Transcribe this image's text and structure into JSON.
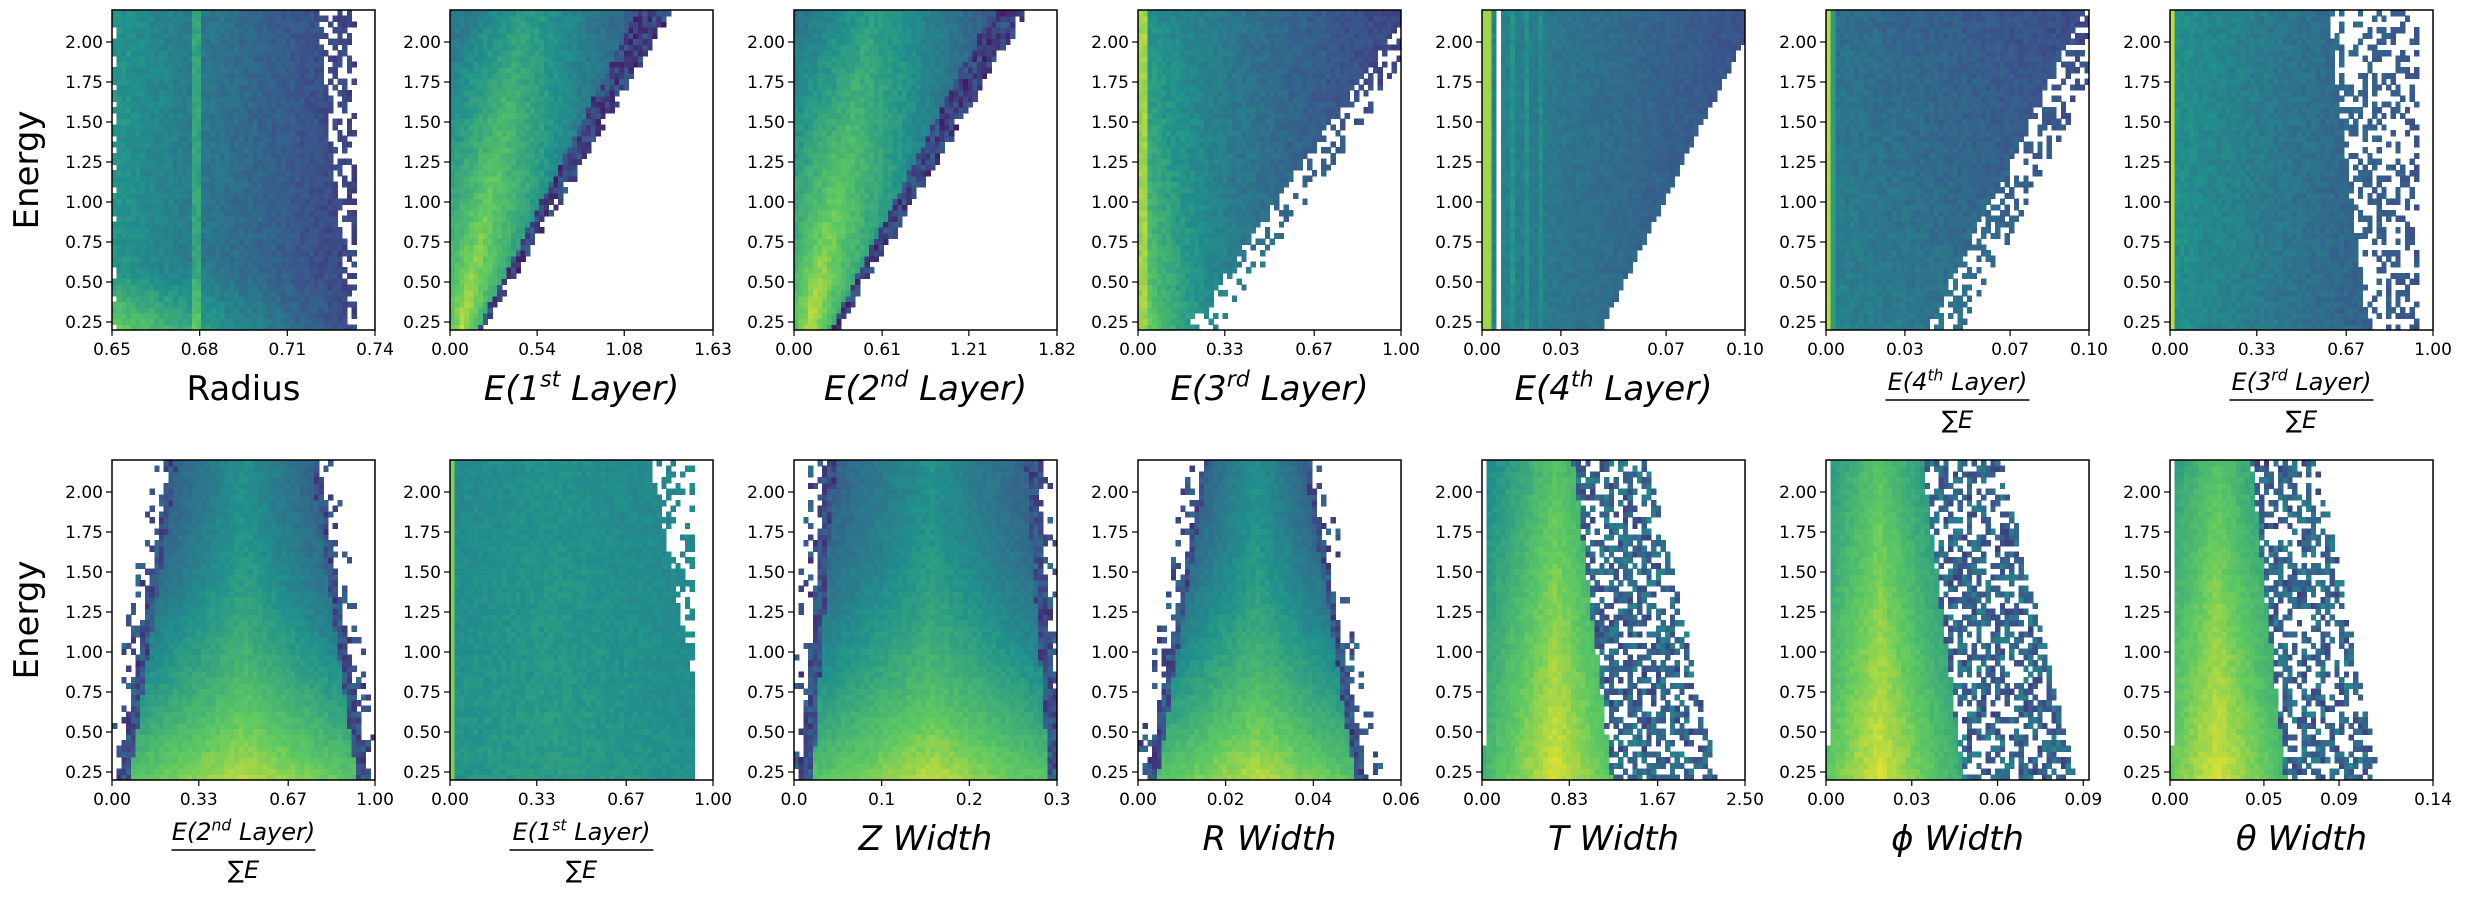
{
  "chart_data": {
    "type": "heatmap",
    "layout": "2 rows x 7 columns of 2D histograms",
    "shared_y": {
      "label": "Energy",
      "ylim": [
        0.2,
        2.2
      ],
      "ticks": [
        0.25,
        0.5,
        0.75,
        1.0,
        1.25,
        1.5,
        1.75,
        2.0
      ],
      "tick_labels": [
        "0.25",
        "0.50",
        "0.75",
        "1.00",
        "1.25",
        "1.50",
        "1.75",
        "2.00"
      ]
    },
    "colormap": [
      "#440154",
      "#3b528b",
      "#21918c",
      "#5ec962",
      "#fde725"
    ],
    "panels": [
      {
        "id": "radius",
        "row": 0,
        "col": 0,
        "xlabel": "Radius",
        "xlabel_style": "plain",
        "xlim": [
          0.65,
          0.74
        ],
        "xticks": [
          0.65,
          0.68,
          0.71,
          0.74
        ],
        "xtick_labels": [
          "0.65",
          "0.68",
          "0.71",
          "0.74"
        ],
        "pattern": "radius"
      },
      {
        "id": "e-layer1",
        "row": 0,
        "col": 1,
        "xlabel_parts": [
          "E(1",
          "st",
          " Layer)"
        ],
        "xlabel_style": "sup",
        "xlim": [
          0,
          1.63
        ],
        "xticks": [
          0,
          0.54,
          1.08,
          1.63
        ],
        "xtick_labels": [
          "0.00",
          "0.54",
          "1.08",
          "1.63"
        ],
        "pattern": "wedge",
        "params": {
          "k": 0.72,
          "w": 0.12
        }
      },
      {
        "id": "e-layer2",
        "row": 0,
        "col": 2,
        "xlabel_parts": [
          "E(2",
          "nd",
          " Layer)"
        ],
        "xlabel_style": "sup",
        "xlim": [
          0,
          1.82
        ],
        "xticks": [
          0,
          0.61,
          1.21,
          1.82
        ],
        "xtick_labels": [
          "0.00",
          "0.61",
          "1.21",
          "1.82"
        ],
        "pattern": "wedge",
        "params": {
          "k": 0.72,
          "w": 0.16
        }
      },
      {
        "id": "e-layer3",
        "row": 0,
        "col": 3,
        "xlabel_parts": [
          "E(3",
          "rd",
          " Layer)"
        ],
        "xlabel_style": "sup",
        "xlim": [
          0,
          1.0
        ],
        "xticks": [
          0,
          0.33,
          0.67,
          1.0
        ],
        "xtick_labels": [
          "0.00",
          "0.33",
          "0.67",
          "1.00"
        ],
        "pattern": "layer3"
      },
      {
        "id": "e-layer4",
        "row": 0,
        "col": 4,
        "xlabel_parts": [
          "E(4",
          "th",
          " Layer)"
        ],
        "xlabel_style": "sup",
        "xlim": [
          0,
          0.1
        ],
        "xticks": [
          0,
          0.03,
          0.07,
          0.1
        ],
        "xtick_labels": [
          "0.00",
          "0.03",
          "0.07",
          "0.10"
        ],
        "pattern": "layer4"
      },
      {
        "id": "frac-layer4",
        "row": 0,
        "col": 5,
        "xlabel_num_parts": [
          "E(4",
          "th",
          " Layer)"
        ],
        "xlabel_den": "∑E",
        "xlabel_style": "frac",
        "xlim": [
          0,
          0.1
        ],
        "xticks": [
          0,
          0.03,
          0.07,
          0.1
        ],
        "xtick_labels": [
          "0.00",
          "0.03",
          "0.07",
          "0.10"
        ],
        "pattern": "frac4"
      },
      {
        "id": "frac-layer3",
        "row": 0,
        "col": 6,
        "xlabel_num_parts": [
          "E(3",
          "rd",
          " Layer)"
        ],
        "xlabel_den": "∑E",
        "xlabel_style": "frac",
        "xlim": [
          0,
          1.0
        ],
        "xticks": [
          0,
          0.33,
          0.67,
          1.0
        ],
        "xtick_labels": [
          "0.00",
          "0.33",
          "0.67",
          "1.00"
        ],
        "pattern": "frac3"
      },
      {
        "id": "frac-layer2",
        "row": 1,
        "col": 0,
        "xlabel_num_parts": [
          "E(2",
          "nd",
          " Layer)"
        ],
        "xlabel_den": "∑E",
        "xlabel_style": "frac",
        "xlim": [
          0,
          1.0
        ],
        "xticks": [
          0,
          0.33,
          0.67,
          1.0
        ],
        "xtick_labels": [
          "0.00",
          "0.33",
          "0.67",
          "1.00"
        ],
        "pattern": "hourglass",
        "params": {
          "c": 0.5,
          "base": 0.48,
          "tip": 0.28
        }
      },
      {
        "id": "frac-layer1",
        "row": 1,
        "col": 1,
        "xlabel_num_parts": [
          "E(1",
          "st",
          " Layer)"
        ],
        "xlabel_den": "∑E",
        "xlabel_style": "frac",
        "xlim": [
          0,
          1.0
        ],
        "xticks": [
          0,
          0.33,
          0.67,
          1.0
        ],
        "xtick_labels": [
          "0.00",
          "0.33",
          "0.67",
          "1.00"
        ],
        "pattern": "frac1"
      },
      {
        "id": "z-width",
        "row": 1,
        "col": 2,
        "xlabel": "Z Width",
        "xlabel_style": "italic",
        "xlim": [
          0,
          0.3
        ],
        "xticks": [
          0,
          0.1,
          0.2,
          0.3
        ],
        "xtick_labels": [
          "0.0",
          "0.1",
          "0.2",
          "0.3"
        ],
        "pattern": "hourglass",
        "params": {
          "c": 0.52,
          "base": 0.5,
          "tip": 0.4
        }
      },
      {
        "id": "r-width",
        "row": 1,
        "col": 3,
        "xlabel": "R Width",
        "xlabel_style": "italic",
        "xlim": [
          0,
          0.06
        ],
        "xticks": [
          0,
          0.02,
          0.04,
          0.06
        ],
        "xtick_labels": [
          "0.00",
          "0.02",
          "0.04",
          "0.06"
        ],
        "pattern": "hourglass",
        "params": {
          "c": 0.45,
          "base": 0.42,
          "tip": 0.2
        }
      },
      {
        "id": "t-width",
        "row": 1,
        "col": 4,
        "xlabel": "T Width",
        "xlabel_style": "italic",
        "xlim": [
          0,
          2.5
        ],
        "xticks": [
          0,
          0.83,
          1.67,
          2.5
        ],
        "xtick_labels": [
          "0.00",
          "0.83",
          "1.67",
          "2.50"
        ],
        "pattern": "skew",
        "params": {
          "peak": 0.28,
          "spread": 0.9
        }
      },
      {
        "id": "phi-width",
        "row": 1,
        "col": 5,
        "xlabel": "ϕ Width",
        "xlabel_style": "italic",
        "xlim": [
          0,
          0.092
        ],
        "xticks": [
          0,
          0.03,
          0.06,
          0.09
        ],
        "xtick_labels": [
          "0.00",
          "0.03",
          "0.06",
          "0.09"
        ],
        "pattern": "skew",
        "params": {
          "peak": 0.2,
          "spread": 0.95
        }
      },
      {
        "id": "theta-width",
        "row": 1,
        "col": 6,
        "xlabel": "θ Width",
        "xlabel_style": "italic",
        "xlim": [
          0,
          0.14
        ],
        "xticks": [
          0,
          0.05,
          0.09,
          0.14
        ],
        "xtick_labels": [
          "0.00",
          "0.05",
          "0.09",
          "0.14"
        ],
        "pattern": "skew",
        "params": {
          "peak": 0.18,
          "spread": 0.8
        }
      }
    ]
  }
}
